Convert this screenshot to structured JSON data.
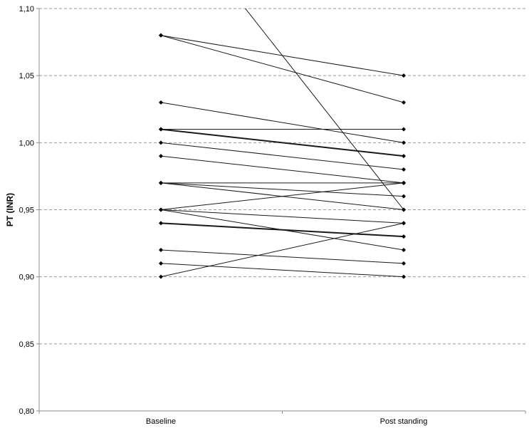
{
  "chart_data": {
    "type": "line",
    "title": "",
    "xlabel": "",
    "ylabel": "PT (INR)",
    "categories": [
      "Baseline",
      "Post standing"
    ],
    "ylim": [
      0.8,
      1.1
    ],
    "yticks": [
      "0,80",
      "0,85",
      "0,90",
      "0,95",
      "1,00",
      "1,05",
      "1,10"
    ],
    "grid": "horizontal-dashed",
    "legend": "none",
    "series": [
      {
        "values": [
          1.08,
          1.05
        ],
        "bold": false
      },
      {
        "values": [
          1.08,
          1.03
        ],
        "bold": false
      },
      {
        "values": [
          1.03,
          1.0
        ],
        "bold": false
      },
      {
        "values": [
          1.01,
          1.01
        ],
        "bold": false
      },
      {
        "values": [
          1.01,
          0.99
        ],
        "bold": true
      },
      {
        "values": [
          1.0,
          0.98
        ],
        "bold": false
      },
      {
        "values": [
          0.99,
          0.97
        ],
        "bold": false
      },
      {
        "values": [
          0.97,
          0.97
        ],
        "bold": false
      },
      {
        "values": [
          0.97,
          0.96
        ],
        "bold": false
      },
      {
        "values": [
          0.97,
          0.95
        ],
        "bold": false
      },
      {
        "values": [
          0.95,
          0.97
        ],
        "bold": false
      },
      {
        "values": [
          0.95,
          0.94
        ],
        "bold": false
      },
      {
        "values": [
          0.95,
          0.92
        ],
        "bold": false
      },
      {
        "values": [
          0.94,
          0.93
        ],
        "bold": true
      },
      {
        "values": [
          0.92,
          0.91
        ],
        "bold": false
      },
      {
        "values": [
          0.91,
          0.9
        ],
        "bold": false
      },
      {
        "values": [
          0.9,
          0.94
        ],
        "bold": false
      },
      {
        "values": [
          1.18,
          0.95
        ],
        "bold": false
      }
    ],
    "colors": {
      "line": "#1a1a1a",
      "marker": "#000000",
      "grid": "#9a9a9a",
      "axis": "#8c8c8c"
    }
  }
}
